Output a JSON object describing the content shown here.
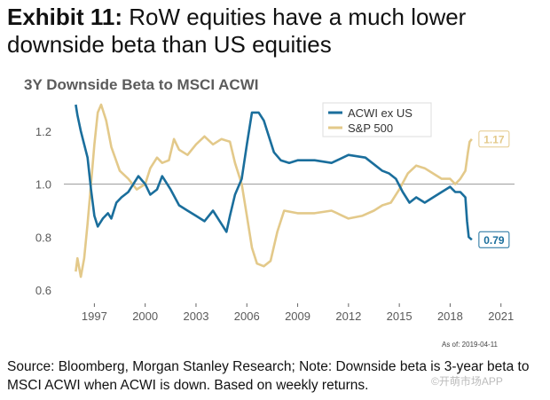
{
  "header": {
    "exhibit_label": "Exhibit 11:",
    "headline": "RoW equities have a much lower downside beta than US equities"
  },
  "chart_title": "3Y Downside Beta to MSCI ACWI",
  "as_of": "As of:   2019-04-11",
  "source_note": "Source: Bloomberg, Morgan Stanley Research; Note: Downside beta is 3-year beta to MSCI ACWI when ACWI is down. Based on weekly returns.",
  "watermark": "©开萌市场APP",
  "chart_data": {
    "type": "line",
    "x_axis": {
      "type": "year",
      "range": [
        1995.2,
        2021.8
      ],
      "ticks": [
        1997,
        2000,
        2003,
        2006,
        2009,
        2012,
        2015,
        2018,
        2021
      ],
      "tick_labels": [
        "1997",
        "2000",
        "2003",
        "2006",
        "2009",
        "2012",
        "2015",
        "2018",
        "2021"
      ]
    },
    "y_axis": {
      "range": [
        0.55,
        1.32
      ],
      "ticks": [
        0.6,
        0.8,
        1.0,
        1.2
      ],
      "tick_labels": [
        "0.6",
        "0.8",
        "1.0",
        "1.2"
      ]
    },
    "reference_line": 1.0,
    "grid": false,
    "legend": {
      "position": "top-right"
    },
    "series": [
      {
        "name": "ACWI ex US",
        "color": "#1a6e9c",
        "end_label": "0.79",
        "points": [
          [
            1995.9,
            1.3
          ],
          [
            1996.0,
            1.26
          ],
          [
            1996.2,
            1.2
          ],
          [
            1996.4,
            1.15
          ],
          [
            1996.6,
            1.1
          ],
          [
            1996.8,
            0.98
          ],
          [
            1997.0,
            0.88
          ],
          [
            1997.2,
            0.84
          ],
          [
            1997.5,
            0.87
          ],
          [
            1997.8,
            0.89
          ],
          [
            1998.0,
            0.87
          ],
          [
            1998.3,
            0.93
          ],
          [
            1998.6,
            0.95
          ],
          [
            1999.0,
            0.97
          ],
          [
            1999.3,
            1.0
          ],
          [
            1999.6,
            1.03
          ],
          [
            2000.0,
            1.0
          ],
          [
            2000.3,
            0.96
          ],
          [
            2000.7,
            0.98
          ],
          [
            2001.0,
            1.03
          ],
          [
            2001.5,
            0.98
          ],
          [
            2002.0,
            0.92
          ],
          [
            2002.5,
            0.9
          ],
          [
            2003.0,
            0.88
          ],
          [
            2003.5,
            0.86
          ],
          [
            2004.0,
            0.9
          ],
          [
            2004.5,
            0.85
          ],
          [
            2004.8,
            0.82
          ],
          [
            2005.0,
            0.88
          ],
          [
            2005.3,
            0.96
          ],
          [
            2005.7,
            1.02
          ],
          [
            2006.0,
            1.15
          ],
          [
            2006.3,
            1.27
          ],
          [
            2006.7,
            1.27
          ],
          [
            2007.0,
            1.24
          ],
          [
            2007.3,
            1.18
          ],
          [
            2007.6,
            1.12
          ],
          [
            2008.0,
            1.09
          ],
          [
            2008.5,
            1.08
          ],
          [
            2009.0,
            1.09
          ],
          [
            2010.0,
            1.09
          ],
          [
            2011.0,
            1.08
          ],
          [
            2012.0,
            1.11
          ],
          [
            2013.0,
            1.1
          ],
          [
            2013.6,
            1.07
          ],
          [
            2014.0,
            1.05
          ],
          [
            2014.4,
            1.04
          ],
          [
            2014.8,
            1.02
          ],
          [
            2015.2,
            0.97
          ],
          [
            2015.6,
            0.93
          ],
          [
            2016.0,
            0.95
          ],
          [
            2016.5,
            0.93
          ],
          [
            2017.0,
            0.95
          ],
          [
            2017.5,
            0.97
          ],
          [
            2018.0,
            0.99
          ],
          [
            2018.3,
            0.97
          ],
          [
            2018.6,
            0.97
          ],
          [
            2018.9,
            0.95
          ],
          [
            2019.0,
            0.86
          ],
          [
            2019.1,
            0.8
          ],
          [
            2019.28,
            0.79
          ]
        ]
      },
      {
        "name": "S&P 500",
        "color": "#e3c98a",
        "end_label": "1.17",
        "points": [
          [
            1995.9,
            0.67
          ],
          [
            1996.0,
            0.72
          ],
          [
            1996.2,
            0.65
          ],
          [
            1996.4,
            0.72
          ],
          [
            1996.6,
            0.85
          ],
          [
            1996.8,
            1.0
          ],
          [
            1997.0,
            1.15
          ],
          [
            1997.2,
            1.27
          ],
          [
            1997.4,
            1.3
          ],
          [
            1997.7,
            1.24
          ],
          [
            1998.0,
            1.14
          ],
          [
            1998.5,
            1.05
          ],
          [
            1999.0,
            1.02
          ],
          [
            1999.5,
            0.98
          ],
          [
            2000.0,
            1.0
          ],
          [
            2000.3,
            1.06
          ],
          [
            2000.7,
            1.1
          ],
          [
            2001.0,
            1.08
          ],
          [
            2001.4,
            1.09
          ],
          [
            2001.7,
            1.17
          ],
          [
            2002.0,
            1.13
          ],
          [
            2002.5,
            1.11
          ],
          [
            2003.0,
            1.15
          ],
          [
            2003.5,
            1.18
          ],
          [
            2004.0,
            1.15
          ],
          [
            2004.5,
            1.17
          ],
          [
            2005.0,
            1.16
          ],
          [
            2005.3,
            1.08
          ],
          [
            2005.7,
            1.0
          ],
          [
            2006.0,
            0.88
          ],
          [
            2006.3,
            0.76
          ],
          [
            2006.6,
            0.7
          ],
          [
            2007.0,
            0.69
          ],
          [
            2007.4,
            0.71
          ],
          [
            2007.8,
            0.82
          ],
          [
            2008.2,
            0.9
          ],
          [
            2009.0,
            0.89
          ],
          [
            2010.0,
            0.89
          ],
          [
            2011.0,
            0.9
          ],
          [
            2012.0,
            0.87
          ],
          [
            2012.8,
            0.88
          ],
          [
            2013.5,
            0.9
          ],
          [
            2014.0,
            0.92
          ],
          [
            2014.5,
            0.93
          ],
          [
            2015.0,
            0.98
          ],
          [
            2015.5,
            1.04
          ],
          [
            2016.0,
            1.07
          ],
          [
            2016.5,
            1.06
          ],
          [
            2017.0,
            1.04
          ],
          [
            2017.5,
            1.02
          ],
          [
            2018.0,
            1.02
          ],
          [
            2018.3,
            1.0
          ],
          [
            2018.6,
            1.02
          ],
          [
            2018.9,
            1.05
          ],
          [
            2019.05,
            1.12
          ],
          [
            2019.15,
            1.16
          ],
          [
            2019.28,
            1.17
          ]
        ]
      }
    ]
  }
}
